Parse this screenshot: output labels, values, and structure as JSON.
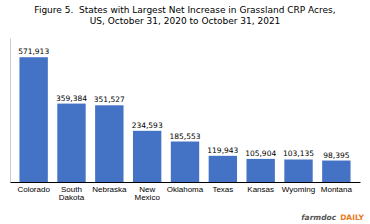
{
  "chart_data": {
    "type": "bar",
    "title": "Figure 5.  States with Largest Net Increase in Grassland CRP Acres,\nUS, October 31, 2020 to October 31, 2021",
    "categories": [
      "Colorado",
      "South\nDakota",
      "Nebraska",
      "New\nMexico",
      "Oklahoma",
      "Texas",
      "Kansas",
      "Wyoming",
      "Montana"
    ],
    "values": [
      571913,
      359384,
      351527,
      234593,
      185553,
      119943,
      105904,
      103135,
      98395
    ],
    "value_labels": [
      "571,913",
      "359,384",
      "351,527",
      "234,593",
      "185,553",
      "119,943",
      "105,904",
      "103,135",
      "98,395"
    ],
    "data_labels": true,
    "color": "#4472C4",
    "ylim": [
      0,
      660000
    ],
    "tick_labels": "x",
    "grid": false,
    "annotations": [
      "farmdoc",
      "DAILY"
    ]
  }
}
